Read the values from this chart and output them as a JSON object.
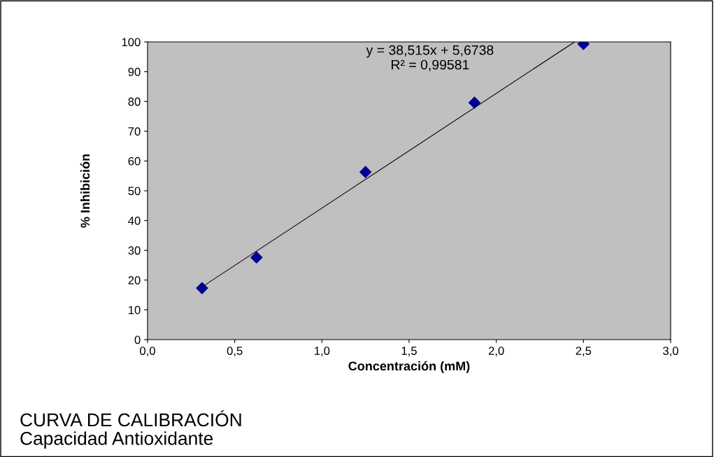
{
  "chart_data": {
    "type": "scatter",
    "title": "CURVA DE CALIBRACIÓN\nCapacidad Antioxidante",
    "xlabel": "Concentración (mM)",
    "ylabel": "% Inhibición",
    "annotations": [
      "y = 38,515x + 5,6738\nR² = 0,99581"
    ],
    "series": [
      {
        "color": "#000099",
        "x": [
          0.3125,
          0.625,
          1.25,
          1.875,
          2.5
        ],
        "values": [
          17.3,
          27.6,
          56.3,
          79.6,
          99.3
        ],
        "marker": "diamond"
      },
      {
        "type": "line",
        "color": "#000000",
        "x": [
          0.3125,
          2.449
        ],
        "values": [
          17.7,
          100
        ],
        "marker": "none",
        "line_style": "solid"
      }
    ],
    "xlim": [
      0,
      3
    ],
    "xticks": [
      {
        "value": 0,
        "label": "0,0"
      },
      {
        "value": 0.5,
        "label": "0,5"
      },
      {
        "value": 1,
        "label": "1,0"
      },
      {
        "value": 1.5,
        "label": "1,5"
      },
      {
        "value": 2,
        "label": "2,0"
      },
      {
        "value": 2.5,
        "label": "2,5"
      },
      {
        "value": 3,
        "label": "3,0"
      }
    ],
    "ylim": [
      0,
      100
    ],
    "yticks": [
      0,
      10,
      20,
      30,
      40,
      50,
      60,
      70,
      80,
      90,
      100
    ],
    "grid": false,
    "legend": false
  }
}
